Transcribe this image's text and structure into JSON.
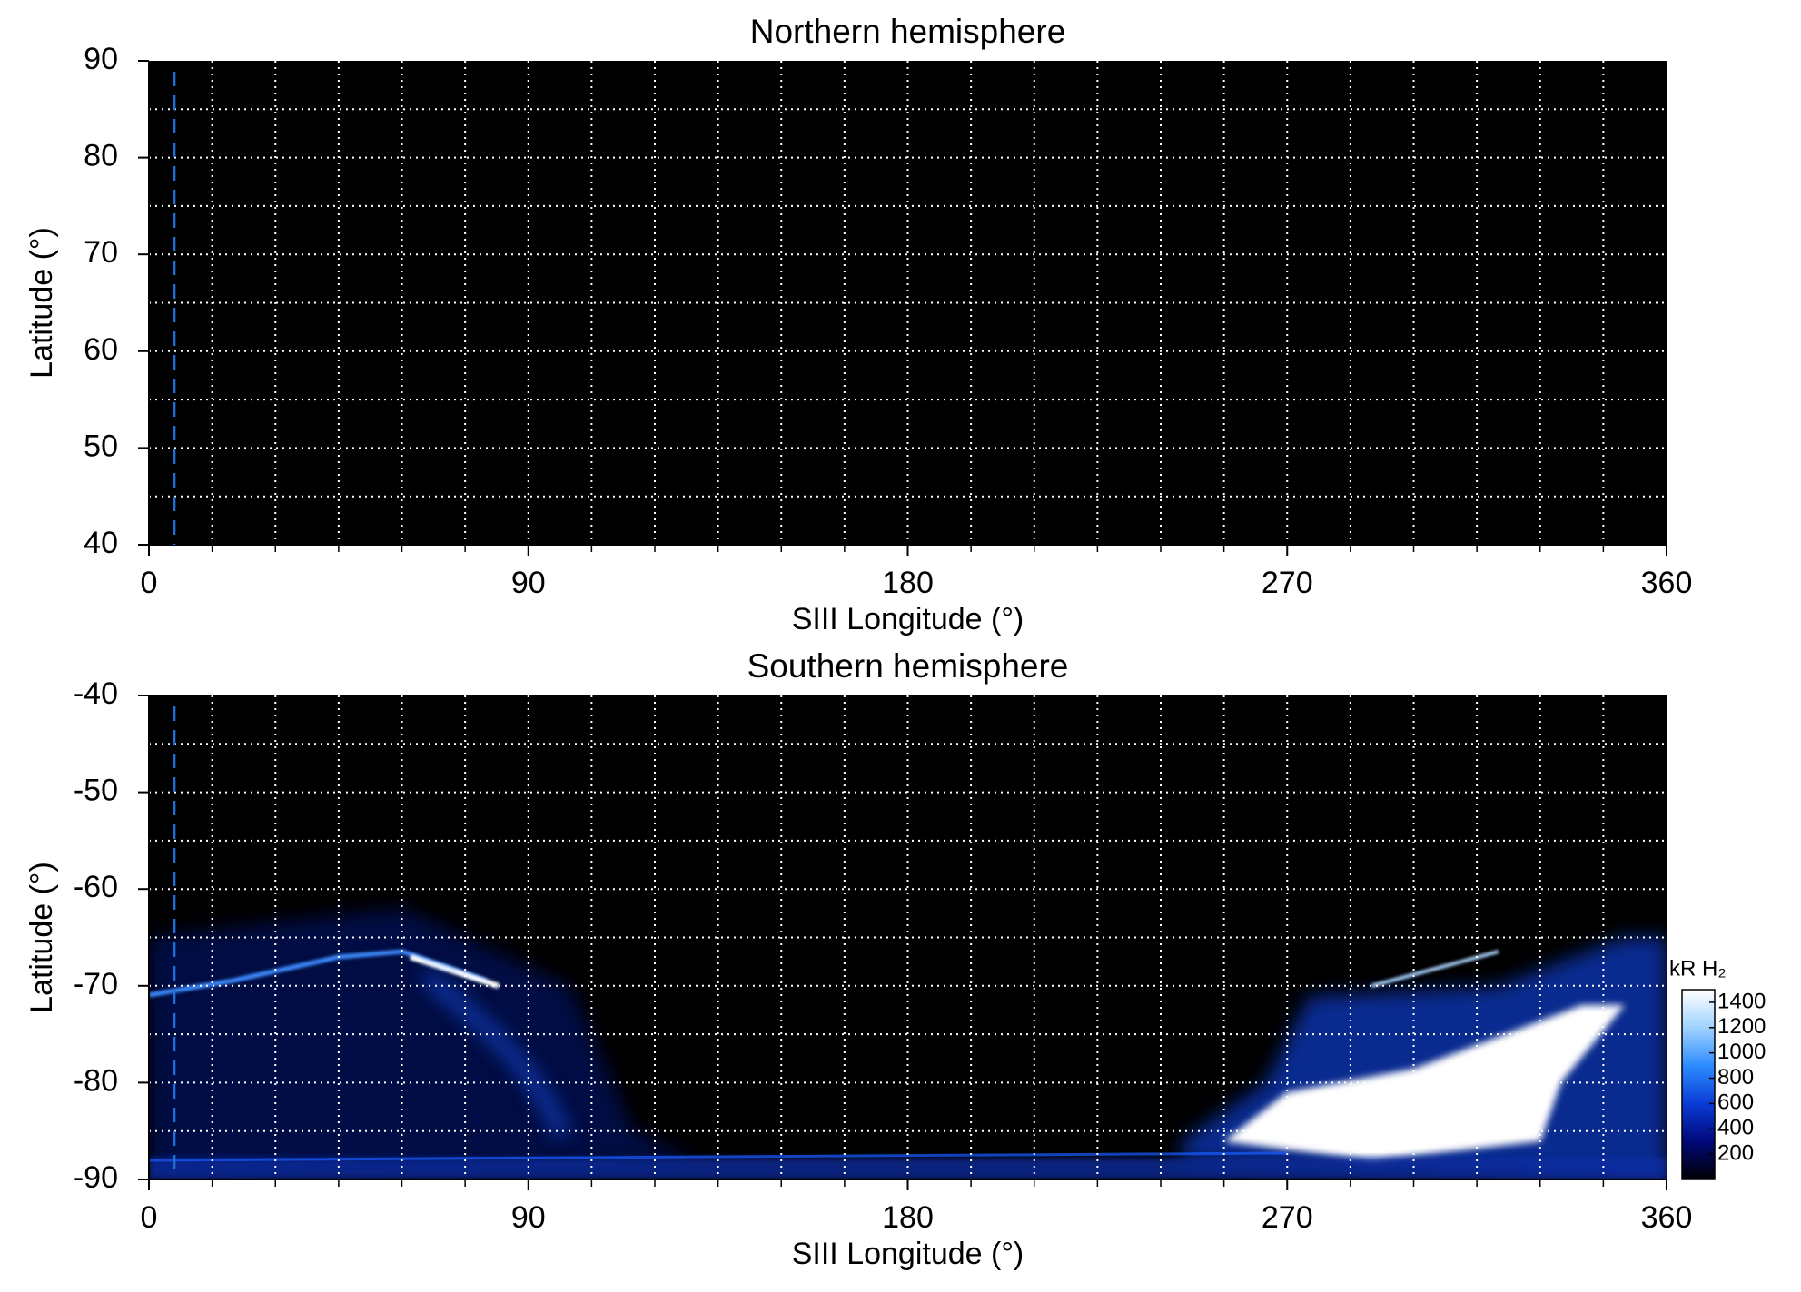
{
  "chart_data": [
    {
      "type": "heatmap",
      "title": "Northern hemisphere",
      "xlabel": "SIII Longitude (°)",
      "ylabel": "Latitude (°)",
      "xlim": [
        0,
        360
      ],
      "xticks": [
        0,
        90,
        180,
        270,
        360
      ],
      "xgrid": [
        15,
        30,
        45,
        60,
        75,
        90,
        105,
        120,
        135,
        150,
        165,
        180,
        195,
        210,
        225,
        240,
        255,
        270,
        285,
        300,
        315,
        330,
        345
      ],
      "ylim": [
        40,
        90
      ],
      "yticks": [
        40,
        50,
        60,
        70,
        80,
        90
      ],
      "ygrid": [
        45,
        50,
        55,
        60,
        65,
        70,
        75,
        80,
        85
      ],
      "background": "#000000",
      "grid_color": "#ffffff",
      "vline": {
        "x": 6,
        "color": "#1f6fd6"
      }
    },
    {
      "type": "heatmap",
      "title": "Southern hemisphere",
      "xlabel": "SIII Longitude (°)",
      "ylabel": "Latitude (°)",
      "xlim": [
        0,
        360
      ],
      "xticks": [
        0,
        90,
        180,
        270,
        360
      ],
      "xgrid": [
        15,
        30,
        45,
        60,
        75,
        90,
        105,
        120,
        135,
        150,
        165,
        180,
        195,
        210,
        225,
        240,
        255,
        270,
        285,
        300,
        315,
        330,
        345
      ],
      "ylim": [
        -90,
        -40
      ],
      "yticks": [
        -90,
        -80,
        -70,
        -60,
        -50,
        -40
      ],
      "ygrid": [
        -85,
        -80,
        -75,
        -70,
        -65,
        -60,
        -55,
        -50,
        -45
      ],
      "background": "#000000",
      "grid_color": "#ffffff",
      "vline": {
        "x": 6,
        "color": "#1f6fd6"
      },
      "colorbar": {
        "label": "kR H₂",
        "clim": [
          0,
          1500
        ],
        "cticks": [
          200,
          400,
          600,
          800,
          1000,
          1200,
          1400
        ],
        "colors": [
          "#000000",
          "#00087a",
          "#0a3cd6",
          "#2e8cff",
          "#9fd2ff",
          "#ffffff"
        ]
      }
    }
  ]
}
